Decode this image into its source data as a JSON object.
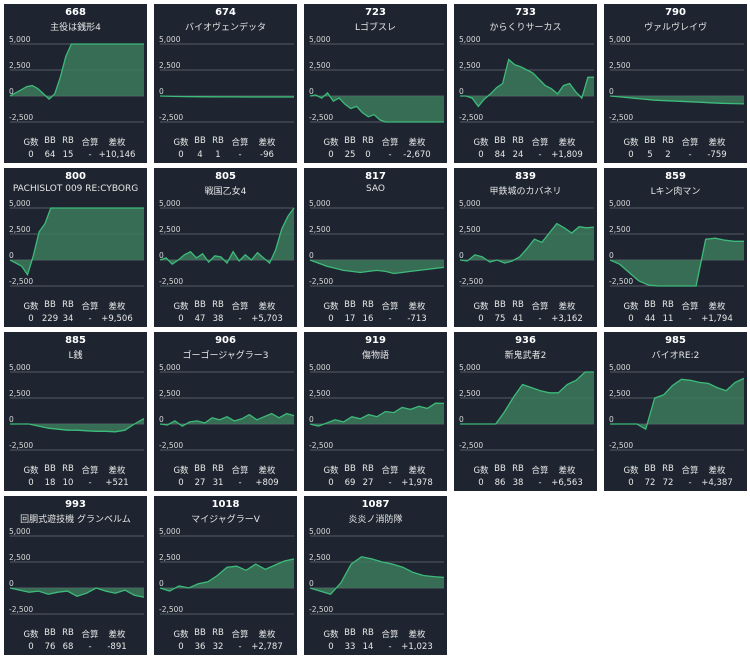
{
  "stat_headers": [
    "G数",
    "BB",
    "RB",
    "合算",
    "差枚"
  ],
  "colors": {
    "card_bg": "#1e2530",
    "line": "#3dbb7a",
    "fill": "#3c7a5c",
    "grid": "#8a8f96"
  },
  "chart_data": [
    {
      "type": "area",
      "title": "668",
      "subtitle": "主役は銭形4",
      "y_ticks": [
        "5,000",
        "2,500",
        "0",
        "-2,500"
      ],
      "ylim": [
        -2500,
        5000
      ],
      "stats": {
        "games": "0",
        "bb": "64",
        "rb": "15",
        "combined": "-",
        "diff": "+10,146"
      },
      "values": [
        0,
        300,
        600,
        900,
        1000,
        700,
        200,
        -300,
        200,
        1800,
        3800,
        5000,
        5000,
        5000,
        5000,
        5000,
        5000,
        5000,
        5000,
        5000,
        5000,
        5000,
        5000,
        5000,
        5000
      ]
    },
    {
      "type": "area",
      "title": "674",
      "subtitle": "バイオヴェンデッタ",
      "y_ticks": [
        "5,000",
        "2,500",
        "0",
        "-2,500"
      ],
      "ylim": [
        -2500,
        5000
      ],
      "stats": {
        "games": "0",
        "bb": "4",
        "rb": "1",
        "combined": "-",
        "diff": "-96"
      },
      "values": [
        0,
        -40,
        -60,
        -70,
        -80,
        -90,
        -90,
        -95,
        -95,
        -96,
        -96,
        -96
      ]
    },
    {
      "type": "area",
      "title": "723",
      "subtitle": "Lゴブスレ",
      "y_ticks": [
        "5,000",
        "2,500",
        "0",
        "-2,500"
      ],
      "ylim": [
        -2500,
        5000
      ],
      "stats": {
        "games": "0",
        "bb": "25",
        "rb": "0",
        "combined": "-",
        "diff": "-2,670"
      },
      "values": [
        0,
        100,
        -200,
        300,
        -500,
        -200,
        -800,
        -1200,
        -1000,
        -1600,
        -2000,
        -1800,
        -2300,
        -2500,
        -2500,
        -2500,
        -2500,
        -2500,
        -2500,
        -2500,
        -2500,
        -2500,
        -2500,
        -2500
      ]
    },
    {
      "type": "area",
      "title": "733",
      "subtitle": "からくりサーカス",
      "y_ticks": [
        "5,000",
        "2,500",
        "0",
        "-2,500"
      ],
      "ylim": [
        -2500,
        5000
      ],
      "stats": {
        "games": "0",
        "bb": "84",
        "rb": "24",
        "combined": "-",
        "diff": "+1,809"
      },
      "values": [
        0,
        0,
        -200,
        -1000,
        -300,
        200,
        800,
        1200,
        3500,
        3000,
        2800,
        2500,
        2200,
        1600,
        1000,
        700,
        200,
        1000,
        1200,
        400,
        -200,
        1800,
        1809
      ]
    },
    {
      "type": "area",
      "title": "790",
      "subtitle": "ヴァルヴレイヴ",
      "y_ticks": [
        "5,000",
        "2,500",
        "0",
        "-2,500"
      ],
      "ylim": [
        -2500,
        5000
      ],
      "stats": {
        "games": "0",
        "bb": "5",
        "rb": "2",
        "combined": "-",
        "diff": "-759"
      },
      "values": [
        0,
        -100,
        -200,
        -300,
        -400,
        -450,
        -500,
        -550,
        -600,
        -650,
        -700,
        -730,
        -759
      ]
    },
    {
      "type": "area",
      "title": "800",
      "subtitle": "PACHISLOT 009 RE:CYBORG",
      "y_ticks": [
        "5,000",
        "2,500",
        "0",
        "-2,500"
      ],
      "ylim": [
        -2500,
        5000
      ],
      "stats": {
        "games": "0",
        "bb": "229",
        "rb": "34",
        "combined": "-",
        "diff": "+9,506"
      },
      "values": [
        0,
        -300,
        -600,
        -1400,
        400,
        2700,
        3500,
        5000,
        5000,
        5000,
        5000,
        5000,
        5000,
        5000,
        5000,
        5000,
        5000,
        5000,
        5000,
        5000,
        5000,
        5000,
        5000,
        5000
      ]
    },
    {
      "type": "area",
      "title": "805",
      "subtitle": "戦国乙女4",
      "y_ticks": [
        "5,000",
        "2,500",
        "0",
        "-2,500"
      ],
      "ylim": [
        -2500,
        5000
      ],
      "stats": {
        "games": "0",
        "bb": "47",
        "rb": "38",
        "combined": "-",
        "diff": "+5,703"
      },
      "values": [
        0,
        200,
        -400,
        0,
        500,
        800,
        200,
        600,
        -200,
        400,
        300,
        -300,
        800,
        -100,
        500,
        0,
        700,
        200,
        -300,
        1000,
        3000,
        4200,
        5000
      ]
    },
    {
      "type": "area",
      "title": "817",
      "subtitle": "SAO",
      "y_ticks": [
        "5,000",
        "2,500",
        "0",
        "-2,500"
      ],
      "ylim": [
        -2500,
        5000
      ],
      "stats": {
        "games": "0",
        "bb": "17",
        "rb": "16",
        "combined": "-",
        "diff": "-713"
      },
      "values": [
        0,
        -300,
        -600,
        -800,
        -1000,
        -1100,
        -1200,
        -1100,
        -1000,
        -1100,
        -1300,
        -1200,
        -1100,
        -1000,
        -900,
        -800,
        -713
      ]
    },
    {
      "type": "area",
      "title": "839",
      "subtitle": "甲鉄城のカバネリ",
      "y_ticks": [
        "5,000",
        "2,500",
        "0",
        "-2,500"
      ],
      "ylim": [
        -2500,
        5000
      ],
      "stats": {
        "games": "0",
        "bb": "75",
        "rb": "41",
        "combined": "-",
        "diff": "+3,162"
      },
      "values": [
        0,
        -100,
        500,
        300,
        -200,
        0,
        -300,
        -100,
        300,
        1100,
        2000,
        1700,
        2600,
        3500,
        3100,
        2600,
        3200,
        3100,
        3162
      ]
    },
    {
      "type": "area",
      "title": "859",
      "subtitle": "Lキン肉マン",
      "y_ticks": [
        "5,000",
        "2,500",
        "0",
        "-2,500"
      ],
      "ylim": [
        -2500,
        5000
      ],
      "stats": {
        "games": "0",
        "bb": "44",
        "rb": "11",
        "combined": "-",
        "diff": "+1,794"
      },
      "values": [
        0,
        -400,
        -1200,
        -2000,
        -2400,
        -2500,
        -2500,
        -2500,
        -2500,
        -2500,
        2000,
        2100,
        1900,
        1800,
        1794
      ]
    },
    {
      "type": "area",
      "title": "885",
      "subtitle": "L銭",
      "y_ticks": [
        "5,000",
        "2,500",
        "0",
        "-2,500"
      ],
      "ylim": [
        -2500,
        5000
      ],
      "stats": {
        "games": "0",
        "bb": "18",
        "rb": "10",
        "combined": "-",
        "diff": "+521"
      },
      "values": [
        0,
        0,
        0,
        -200,
        -400,
        -500,
        -600,
        -600,
        -650,
        -700,
        -700,
        -750,
        -600,
        0,
        521
      ]
    },
    {
      "type": "area",
      "title": "906",
      "subtitle": "ゴーゴージャグラー3",
      "y_ticks": [
        "5,000",
        "2,500",
        "0",
        "-2,500"
      ],
      "ylim": [
        -2500,
        5000
      ],
      "stats": {
        "games": "0",
        "bb": "27",
        "rb": "31",
        "combined": "-",
        "diff": "+809"
      },
      "values": [
        0,
        -100,
        300,
        -200,
        200,
        300,
        100,
        600,
        400,
        700,
        300,
        500,
        900,
        400,
        700,
        1000,
        600,
        1000,
        809
      ]
    },
    {
      "type": "area",
      "title": "919",
      "subtitle": "傷物語",
      "y_ticks": [
        "5,000",
        "2,500",
        "0",
        "-2,500"
      ],
      "ylim": [
        -2500,
        5000
      ],
      "stats": {
        "games": "0",
        "bb": "69",
        "rb": "27",
        "combined": "-",
        "diff": "+1,978"
      },
      "values": [
        0,
        -200,
        100,
        400,
        200,
        700,
        500,
        900,
        700,
        1200,
        1100,
        1600,
        1400,
        1700,
        1500,
        2000,
        1978
      ]
    },
    {
      "type": "area",
      "title": "936",
      "subtitle": "新鬼武者2",
      "y_ticks": [
        "5,000",
        "2,500",
        "0",
        "-2,500"
      ],
      "ylim": [
        -2500,
        5000
      ],
      "stats": {
        "games": "0",
        "bb": "86",
        "rb": "38",
        "combined": "-",
        "diff": "+6,563"
      },
      "values": [
        0,
        0,
        0,
        0,
        0,
        1200,
        2600,
        3800,
        3500,
        3200,
        3000,
        3000,
        3800,
        4200,
        5000,
        5000
      ]
    },
    {
      "type": "area",
      "title": "985",
      "subtitle": "バイオRE:2",
      "y_ticks": [
        "5,000",
        "2,500",
        "0",
        "-2,500"
      ],
      "ylim": [
        -2500,
        5000
      ],
      "stats": {
        "games": "0",
        "bb": "72",
        "rb": "72",
        "combined": "-",
        "diff": "+4,387"
      },
      "values": [
        0,
        0,
        0,
        0,
        -500,
        2500,
        2800,
        3700,
        4300,
        4200,
        4000,
        3900,
        3500,
        3200,
        4000,
        4387
      ]
    },
    {
      "type": "area",
      "title": "993",
      "subtitle": "回胴式遊技機 グランベルム",
      "y_ticks": [
        "5,000",
        "2,500",
        "0",
        "-2,500"
      ],
      "ylim": [
        -2500,
        5000
      ],
      "stats": {
        "games": "0",
        "bb": "76",
        "rb": "68",
        "combined": "-",
        "diff": "-891"
      },
      "values": [
        0,
        -200,
        -400,
        -300,
        -600,
        -400,
        -300,
        -800,
        -500,
        0,
        -300,
        -500,
        -200,
        -700,
        -891
      ]
    },
    {
      "type": "area",
      "title": "1018",
      "subtitle": "マイジャグラーV",
      "y_ticks": [
        "5,000",
        "2,500",
        "0",
        "-2,500"
      ],
      "ylim": [
        -2500,
        5000
      ],
      "stats": {
        "games": "0",
        "bb": "36",
        "rb": "32",
        "combined": "-",
        "diff": "+2,787"
      },
      "values": [
        0,
        -300,
        200,
        0,
        400,
        600,
        1200,
        2000,
        2100,
        1700,
        2300,
        1800,
        2200,
        2600,
        2787
      ]
    },
    {
      "type": "area",
      "title": "1087",
      "subtitle": "炎炎ノ消防隊",
      "y_ticks": [
        "5,000",
        "2,500",
        "0",
        "-2,500"
      ],
      "ylim": [
        -2500,
        5000
      ],
      "stats": {
        "games": "0",
        "bb": "33",
        "rb": "14",
        "combined": "-",
        "diff": "+1,023"
      },
      "values": [
        0,
        -300,
        -600,
        500,
        2300,
        3000,
        2800,
        2500,
        2300,
        2000,
        1500,
        1200,
        1100,
        1023
      ]
    }
  ]
}
